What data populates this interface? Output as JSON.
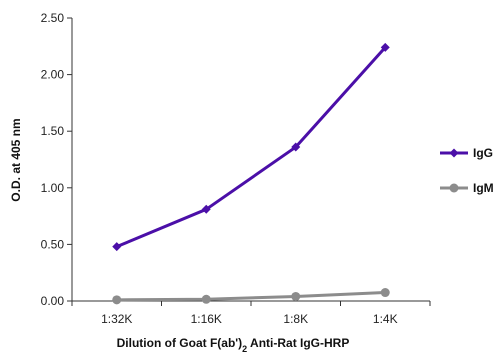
{
  "chart_data": {
    "type": "line",
    "categories": [
      "1:32K",
      "1:16K",
      "1:8K",
      "1:4K"
    ],
    "series": [
      {
        "name": "IgG",
        "values": [
          0.48,
          0.81,
          1.36,
          2.24
        ],
        "color": "#4b0fa8",
        "marker": "diamond"
      },
      {
        "name": "IgM",
        "values": [
          0.01,
          0.015,
          0.04,
          0.075
        ],
        "color": "#8c8c8c",
        "marker": "circle"
      }
    ],
    "title": "",
    "xlabel_parts": [
      "Dilution of Goat F(ab')",
      "2",
      " Anti-Rat IgG-HRP"
    ],
    "ylabel": "O.D. at 405 nm",
    "ylim": [
      0,
      2.5
    ],
    "yticks": [
      "0.00",
      "0.50",
      "1.00",
      "1.50",
      "2.00",
      "2.50"
    ],
    "grid": false,
    "legend": "right"
  }
}
